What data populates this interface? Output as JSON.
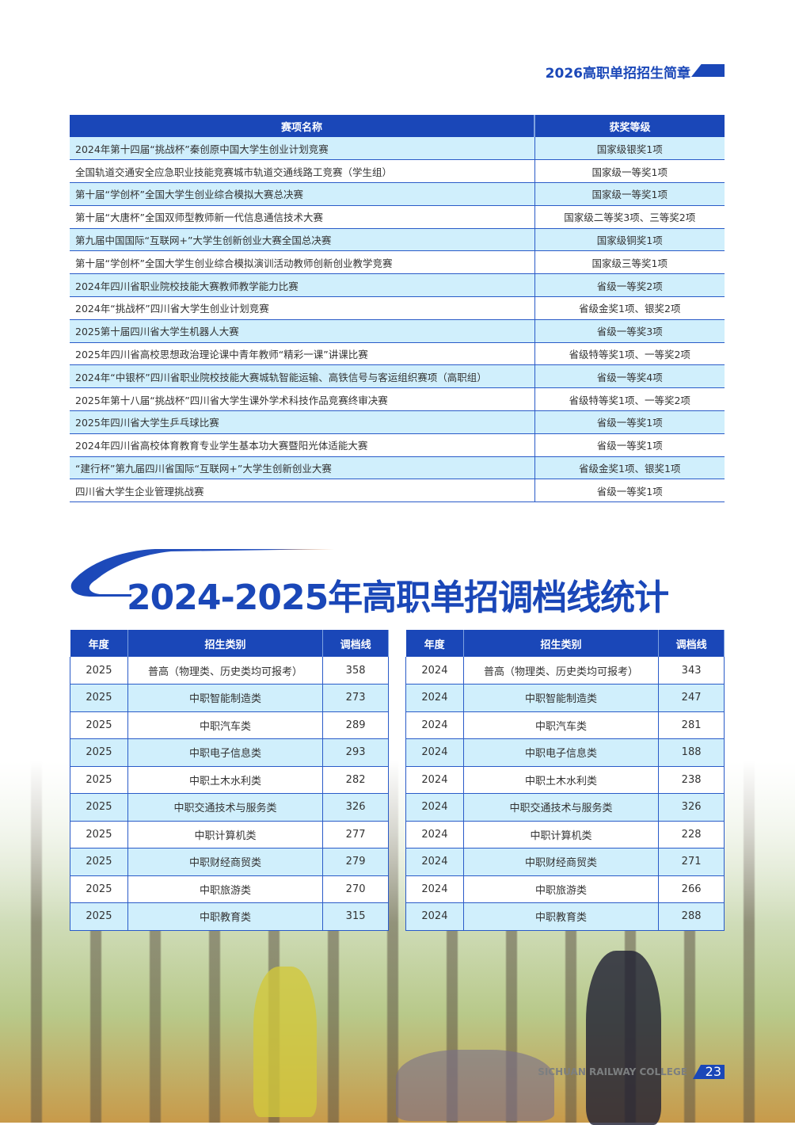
{
  "header": {
    "title": "2026高职单招招生简章"
  },
  "awards": {
    "columns": [
      "赛项名称",
      "获奖等级"
    ],
    "rows": [
      [
        "2024年第十四届“挑战杯”秦创原中国大学生创业计划竞赛",
        "国家级银奖1项"
      ],
      [
        "全国轨道交通安全应急职业技能竞赛城市轨道交通线路工竞赛（学生组）",
        "国家级一等奖1项"
      ],
      [
        "第十届“学创杯”全国大学生创业综合模拟大赛总决赛",
        "国家级一等奖1项"
      ],
      [
        "第十届“大唐杯”全国双师型教师新一代信息通信技术大赛",
        "国家级二等奖3项、三等奖2项"
      ],
      [
        "第九届中国国际“互联网+”大学生创新创业大赛全国总决赛",
        "国家级铜奖1项"
      ],
      [
        "第十届“学创杯”全国大学生创业综合模拟演训活动教师创新创业教学竞赛",
        "国家级三等奖1项"
      ],
      [
        "2024年四川省职业院校技能大赛教师教学能力比赛",
        "省级一等奖2项"
      ],
      [
        "2024年“挑战杯”四川省大学生创业计划竞赛",
        "省级金奖1项、银奖2项"
      ],
      [
        "2025第十届四川省大学生机器人大赛",
        "省级一等奖3项"
      ],
      [
        "2025年四川省高校思想政治理论课中青年教师“精彩一课”讲课比赛",
        "省级特等奖1项、一等奖2项"
      ],
      [
        "2024年“中银杯”四川省职业院校技能大赛城轨智能运输、高铁信号与客运组织赛项（高职组）",
        "省级一等奖4项"
      ],
      [
        "2025年第十八届“挑战杯”四川省大学生课外学术科技作品竞赛终审决赛",
        "省级特等奖1项、一等奖2项"
      ],
      [
        "2025年四川省大学生乒乓球比赛",
        "省级一等奖1项"
      ],
      [
        "2024年四川省高校体育教育专业学生基本功大赛暨阳光体适能大赛",
        "省级一等奖1项"
      ],
      [
        "“建行杯”第九届四川省国际“互联网+”大学生创新创业大赛",
        "省级金奖1项、银奖1项"
      ],
      [
        "四川省大学生企业管理挑战赛",
        "省级一等奖1项"
      ]
    ]
  },
  "section_title": "2024-2025年高职单招调档线统计",
  "scores": {
    "columns": [
      "年度",
      "招生类别",
      "调档线"
    ],
    "tables": [
      {
        "rows": [
          [
            "2025",
            "普高（物理类、历史类均可报考）",
            "358"
          ],
          [
            "2025",
            "中职智能制造类",
            "273"
          ],
          [
            "2025",
            "中职汽车类",
            "289"
          ],
          [
            "2025",
            "中职电子信息类",
            "293"
          ],
          [
            "2025",
            "中职土木水利类",
            "282"
          ],
          [
            "2025",
            "中职交通技术与服务类",
            "326"
          ],
          [
            "2025",
            "中职计算机类",
            "277"
          ],
          [
            "2025",
            "中职财经商贸类",
            "279"
          ],
          [
            "2025",
            "中职旅游类",
            "270"
          ],
          [
            "2025",
            "中职教育类",
            "315"
          ]
        ]
      },
      {
        "rows": [
          [
            "2024",
            "普高（物理类、历史类均可报考）",
            "343"
          ],
          [
            "2024",
            "中职智能制造类",
            "247"
          ],
          [
            "2024",
            "中职汽车类",
            "281"
          ],
          [
            "2024",
            "中职电子信息类",
            "188"
          ],
          [
            "2024",
            "中职土木水利类",
            "238"
          ],
          [
            "2024",
            "中职交通技术与服务类",
            "326"
          ],
          [
            "2024",
            "中职计算机类",
            "228"
          ],
          [
            "2024",
            "中职财经商贸类",
            "271"
          ],
          [
            "2024",
            "中职旅游类",
            "266"
          ],
          [
            "2024",
            "中职教育类",
            "288"
          ]
        ]
      }
    ]
  },
  "footer": {
    "college": "SICHUAN RAILWAY COLLEGE",
    "page": "23"
  },
  "colors": {
    "brand": "#1a47b8",
    "row_alt": "#d0effc"
  }
}
